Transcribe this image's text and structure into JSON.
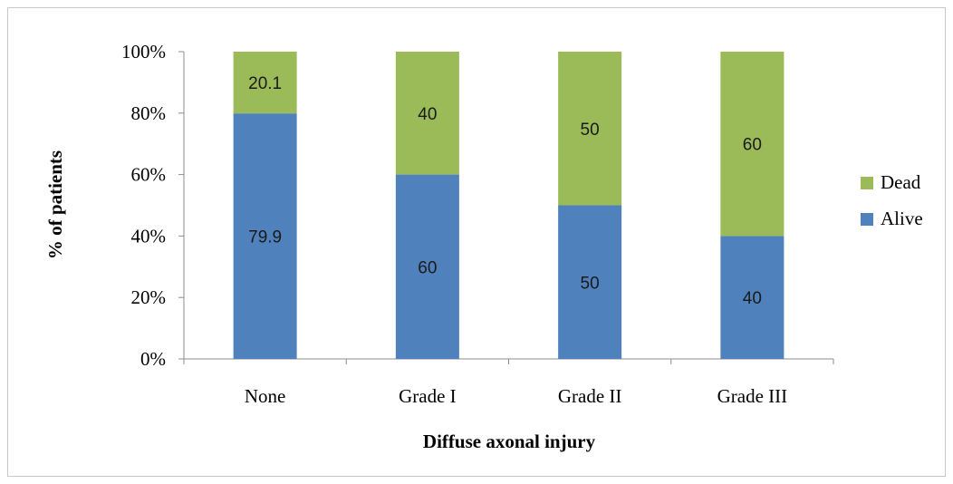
{
  "chart_data": {
    "type": "bar",
    "stacked": true,
    "percent": true,
    "xlabel": "Diffuse axonal injury",
    "ylabel": "% of patients",
    "categories": [
      "None",
      "Grade I",
      "Grade II",
      "Grade III"
    ],
    "series": [
      {
        "name": "Alive",
        "color": "#4f81bd",
        "values": [
          79.9,
          60,
          50,
          40
        ],
        "labels": [
          "79.9",
          "60",
          "50",
          "40"
        ]
      },
      {
        "name": "Dead",
        "color": "#9bbb59",
        "values": [
          20.1,
          40,
          50,
          60
        ],
        "labels": [
          "20.1",
          "40",
          "50",
          "60"
        ]
      }
    ],
    "yticks": [
      "0%",
      "20%",
      "40%",
      "60%",
      "80%",
      "100%"
    ],
    "ylim": [
      0,
      100
    ],
    "legend": {
      "placement": "right",
      "order": [
        "Dead",
        "Alive"
      ]
    },
    "grid": false
  }
}
